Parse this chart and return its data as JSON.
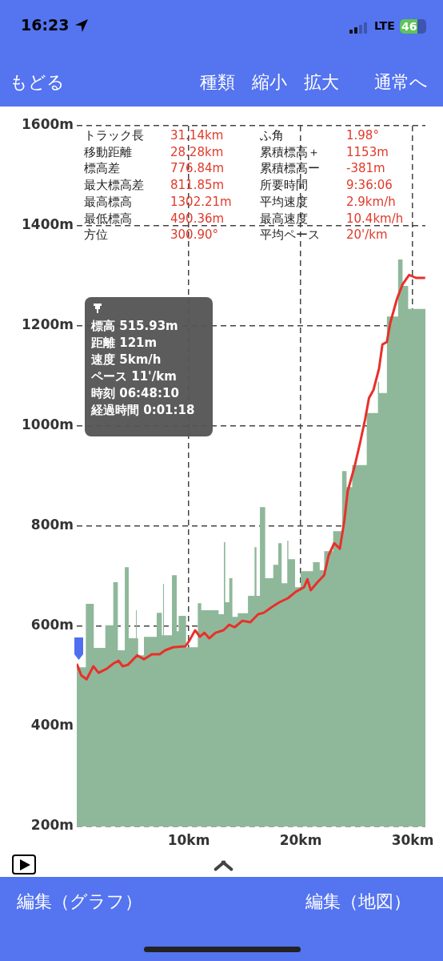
{
  "chart_data": {
    "type": "line",
    "xlim": [
      0,
      31.14
    ],
    "ylim": [
      200,
      1600
    ],
    "xticks": [
      {
        "value": 10,
        "label": "10km"
      },
      {
        "value": 20,
        "label": "20km"
      },
      {
        "value": 30,
        "label": "30km"
      }
    ],
    "yticks": [
      {
        "value": 200,
        "label": "200m"
      },
      {
        "value": 400,
        "label": "400m"
      },
      {
        "value": 600,
        "label": "600m"
      },
      {
        "value": 800,
        "label": "800m"
      },
      {
        "value": 1000,
        "label": "1000m"
      },
      {
        "value": 1200,
        "label": "1200m"
      },
      {
        "value": 1400,
        "label": "1400m"
      },
      {
        "value": 1600,
        "label": "1600m"
      }
    ],
    "grid": true,
    "legend": false,
    "marker": "none",
    "line_style": "solid",
    "series": [
      {
        "type": "area",
        "color": "#8fb89a",
        "x": [
          0,
          0.81,
          0.81,
          1.52,
          1.52,
          2.55,
          2.55,
          3.26,
          3.26,
          3.67,
          3.67,
          4.29,
          4.29,
          4.64,
          4.64,
          5.29,
          5.29,
          5.36,
          5.36,
          5.48,
          5.48,
          6.0,
          6.0,
          7.14,
          7.14,
          7.6,
          7.6,
          7.71,
          7.71,
          7.79,
          7.79,
          8.5,
          8.5,
          8.93,
          8.93,
          9.1,
          9.1,
          9.76,
          9.76,
          10.81,
          10.81,
          11.12,
          11.12,
          12.67,
          12.67,
          13.14,
          13.14,
          13.26,
          13.26,
          13.62,
          13.62,
          13.9,
          13.9,
          14.38,
          14.38,
          15.29,
          15.29,
          15.88,
          15.88,
          16.05,
          16.05,
          16.36,
          16.36,
          16.83,
          16.83,
          17.55,
          17.55,
          18.0,
          18.0,
          18.3,
          18.3,
          18.8,
          18.8,
          18.9,
          18.9,
          19.5,
          19.5,
          20.0,
          20.0,
          21.1,
          21.1,
          21.7,
          21.7,
          22.1,
          22.1,
          22.9,
          22.9,
          23.7,
          23.7,
          24.1,
          24.1,
          24.6,
          24.6,
          25.9,
          25.9,
          26.9,
          26.9,
          27.0,
          27.0,
          27.7,
          27.7,
          28.7,
          28.7,
          29.1,
          29.1,
          29.6,
          29.6,
          31.14
        ],
        "values": [
          518,
          518,
          645,
          645,
          557,
          557,
          602,
          602,
          688,
          688,
          552,
          552,
          718,
          718,
          576,
          576,
          632,
          632,
          576,
          576,
          542,
          542,
          579,
          579,
          627,
          627,
          582,
          582,
          685,
          685,
          582,
          582,
          702,
          702,
          590,
          590,
          621,
          621,
          558,
          558,
          646,
          646,
          632,
          632,
          624,
          624,
          768,
          768,
          648,
          648,
          696,
          696,
          619,
          619,
          626,
          626,
          661,
          661,
          758,
          758,
          661,
          661,
          838,
          838,
          696,
          696,
          723,
          723,
          766,
          766,
          686,
          686,
          771,
          771,
          734,
          734,
          678,
          678,
          710,
          710,
          728,
          728,
          712,
          712,
          750,
          750,
          790,
          790,
          910,
          910,
          878,
          878,
          922,
          922,
          1026,
          1026,
          1088,
          1088,
          1066,
          1066,
          1219,
          1219,
          1333,
          1333,
          1280,
          1280,
          1234,
          1234
        ]
      },
      {
        "type": "line",
        "color": "#e8302a",
        "x": [
          0,
          0.4,
          0.88,
          1.48,
          1.95,
          2.67,
          3.3,
          3.74,
          4.1,
          4.57,
          5.4,
          6.0,
          6.7,
          7.4,
          7.9,
          8.6,
          9.7,
          10.05,
          10.57,
          11.0,
          11.4,
          11.83,
          12.4,
          13.1,
          13.62,
          14.1,
          14.8,
          15.5,
          16.2,
          16.71,
          17.4,
          18.1,
          18.86,
          19.57,
          20.3,
          20.6,
          20.9,
          21.5,
          22.1,
          22.5,
          23.0,
          23.5,
          23.9,
          24.2,
          24.8,
          25.3,
          25.76,
          26.1,
          26.5,
          27.0,
          27.3,
          27.7,
          28.0,
          28.6,
          29.1,
          29.69,
          30.3,
          31.12
        ],
        "values": [
          525,
          502,
          494,
          520,
          507,
          515,
          526,
          531,
          520,
          523,
          542,
          534,
          544,
          544,
          552,
          558,
          560,
          571,
          592,
          579,
          587,
          576,
          587,
          592,
          603,
          598,
          611,
          608,
          624,
          627,
          638,
          648,
          656,
          669,
          678,
          694,
          672,
          688,
          702,
          742,
          766,
          755,
          811,
          870,
          918,
          966,
          1014,
          1056,
          1072,
          1115,
          1163,
          1168,
          1206,
          1254,
          1283,
          1302,
          1296,
          1296
        ]
      }
    ],
    "annotations": [
      "16:23",
      "LTE",
      "46",
      "もどる",
      "種類",
      "縮小",
      "拡大",
      "通常へ",
      "トラック長",
      "31.14km",
      "ふ角",
      "1.98°",
      "移動距離",
      "28.28km",
      "累積標高＋",
      "1153m",
      "標高差",
      "776.84m",
      "累積標高ー",
      "-381m",
      "最大標高差",
      "811.85m",
      "所要時間",
      "9:36:06",
      "最高標高",
      "1302.21m",
      "平均速度",
      "2.9km/h",
      "最低標高",
      "490.36m",
      "最高速度",
      "10.4km/h",
      "方位",
      "300.90°",
      "平均ペース",
      "20'/km",
      "標高 515.93m\n距離 121m\n速度 5km/h\nペース 11'/km\n時刻 06:48:10\n経過時間 0:01:18",
      "編集（グラフ）",
      "編集（地図）"
    ]
  }
}
